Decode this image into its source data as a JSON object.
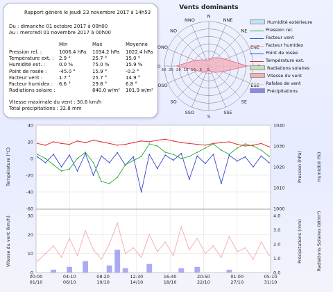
{
  "report": {
    "title": "Rapport généré le jeudi 23 novembre 2017 à 14h53",
    "from": "Du : dimanche 01 octobre 2017 à 00h00",
    "to": "Au : mercredi 01 novembre 2017 à 00h00",
    "headers": [
      "Min",
      "Max",
      "Moyenne"
    ],
    "rows": [
      {
        "label": "Pression rel. :",
        "min": "1006.4 hPa",
        "max": "1034.2 hPa",
        "avg": "1022.4 hPa"
      },
      {
        "label": "Température ext. :",
        "min": "2.9 °",
        "max": "25.7 °",
        "avg": "15.0 °"
      },
      {
        "label": "Humidité ext. :",
        "min": "0.0 %",
        "max": "75.0 %",
        "avg": "15.9 %"
      },
      {
        "label": "Point de rosée :",
        "min": "-45.0 °",
        "max": "15.9 °",
        "avg": "-0.2 °"
      },
      {
        "label": "Facteur vent :",
        "min": "1.7 °",
        "max": "25.7 °",
        "avg": "14.9 °"
      },
      {
        "label": "Facteur humidex :",
        "min": "6.6 °",
        "max": "29.8 °",
        "avg": "6.8 °"
      },
      {
        "label": "Radiations solaire :",
        "min": "",
        "max": "840.0 w/m²",
        "avg": "101.9 w/m²"
      }
    ],
    "wind_max": "Vitesse maximale du vent : 30.6 km/h",
    "precip_total": "Total précipitations : 32.8 mm"
  },
  "rose": {
    "title": "Vents dominants",
    "directions": [
      "N",
      "NNE",
      "NE",
      "ENE",
      "E",
      "ESE",
      "SE",
      "SSE",
      "S",
      "SSO",
      "SO",
      "OSO",
      "O",
      "ONO",
      "NO",
      "NNO"
    ],
    "ring_labels": [
      "0",
      "5",
      "10",
      "15",
      "20",
      "25",
      "30"
    ],
    "values": [
      4,
      6,
      8,
      12,
      26,
      10,
      6,
      4,
      3,
      4,
      6,
      8,
      22,
      10,
      6,
      4
    ],
    "fill_color": "#f3b5c3",
    "stroke_color": "#e0607a"
  },
  "legend": [
    {
      "label": "Humidité extérieure",
      "color": "#bfe4ee",
      "type": "fill"
    },
    {
      "label": "Pression rel.",
      "color": "#22aa33",
      "type": "line"
    },
    {
      "label": "Facteur vent",
      "color": "#3b55e0",
      "type": "line"
    },
    {
      "label": "Facteur humidex",
      "color": "#f0a0a0",
      "type": "line"
    },
    {
      "label": "Point de rosée",
      "color": "#3344cc",
      "type": "line"
    },
    {
      "label": "Température ext.",
      "color": "#e03030",
      "type": "line"
    },
    {
      "label": "Radiations solaires",
      "color": "#c9dcb5",
      "type": "fill"
    },
    {
      "label": "Vitesse du vent",
      "color": "#f5b0b0",
      "type": "fill"
    },
    {
      "label": "Rafales de vent",
      "color": "#f7c5c5",
      "type": "line"
    },
    {
      "label": "Précipitations",
      "color": "#8888ee",
      "type": "fill"
    }
  ],
  "chart_data": [
    {
      "type": "line",
      "x_ticks": [
        "00:00 01/10",
        "04:10 06/10",
        "08:20 10/10",
        "12:30 14/10",
        "16:40 18/10",
        "20:50 22/10",
        "01:00 27/10",
        "05:10 31/10"
      ],
      "ylabel_left": "Température (°C)",
      "ylabel_right1": "Pression (hPa)",
      "ylabel_right2": "Humidité (%)",
      "left_ticks": [
        "40",
        "20",
        "0",
        "-20",
        "-40",
        "-60"
      ],
      "pressure_ticks": [
        "1040",
        "1030",
        "1020",
        "1010",
        "1000"
      ],
      "ylim_left": [
        -60,
        40
      ],
      "ylim_pressure": [
        1000,
        1040
      ],
      "series": [
        {
          "name": "Température ext.",
          "values": [
            18,
            16,
            20,
            18,
            17,
            21,
            19,
            22,
            20,
            18,
            16,
            17,
            19,
            21,
            20,
            22,
            23,
            21,
            19,
            18,
            17,
            16,
            18,
            19,
            20,
            17,
            15,
            16,
            18,
            14
          ]
        },
        {
          "name": "Pression rel.",
          "values": [
            1026,
            1024,
            1021,
            1018,
            1019,
            1024,
            1027,
            1022,
            1013,
            1012,
            1015,
            1021,
            1023,
            1025,
            1031,
            1030,
            1027,
            1026,
            1024,
            1025,
            1027,
            1029,
            1031,
            1028,
            1026,
            1029,
            1031,
            1030,
            1028,
            1025
          ]
        },
        {
          "name": "Point de rosée",
          "values": [
            2,
            -5,
            5,
            -10,
            4,
            -15,
            6,
            -20,
            3,
            -5,
            7,
            -8,
            2,
            -40,
            5,
            -12,
            4,
            -2,
            6,
            -25,
            3,
            -6,
            5,
            -30,
            4,
            -3,
            2,
            -10,
            3,
            -5
          ]
        }
      ]
    },
    {
      "type": "line",
      "x_ticks": [
        "00:00 01/10",
        "04:10 06/10",
        "08:20 10/10",
        "12:30 14/10",
        "16:40 18/10",
        "20:50 22/10",
        "01:00 27/10",
        "05:10 31/10"
      ],
      "ylabel_left": "Vitesse du vent (km/h)",
      "ylabel_right1": "Précipitations (mm)",
      "ylabel_right2": "Radiations Solaires (W/m²)",
      "left_ticks": [
        "30",
        "20",
        "10",
        "0"
      ],
      "right_ticks": [
        "4.0",
        "3.0",
        "2.0",
        "1.0",
        "0.0"
      ],
      "ylim_left": [
        0,
        30
      ],
      "ylim_right": [
        0,
        4
      ],
      "series": [
        {
          "name": "Vitesse du vent",
          "values": [
            6,
            10,
            14,
            8,
            18,
            9,
            22,
            12,
            7,
            15,
            26,
            10,
            13,
            8,
            20,
            11,
            16,
            9,
            24,
            12,
            18,
            10,
            14,
            8,
            19,
            11,
            13,
            7,
            16,
            9
          ]
        },
        {
          "name": "Précipitations",
          "values": [
            0,
            0,
            0.2,
            0,
            0.4,
            0,
            0.8,
            0,
            0,
            0.5,
            1.6,
            0.3,
            0,
            0,
            0.6,
            0,
            0,
            0,
            0.3,
            0,
            0.4,
            0,
            0,
            0,
            0.2,
            0,
            0,
            0,
            0,
            0
          ]
        }
      ]
    }
  ]
}
